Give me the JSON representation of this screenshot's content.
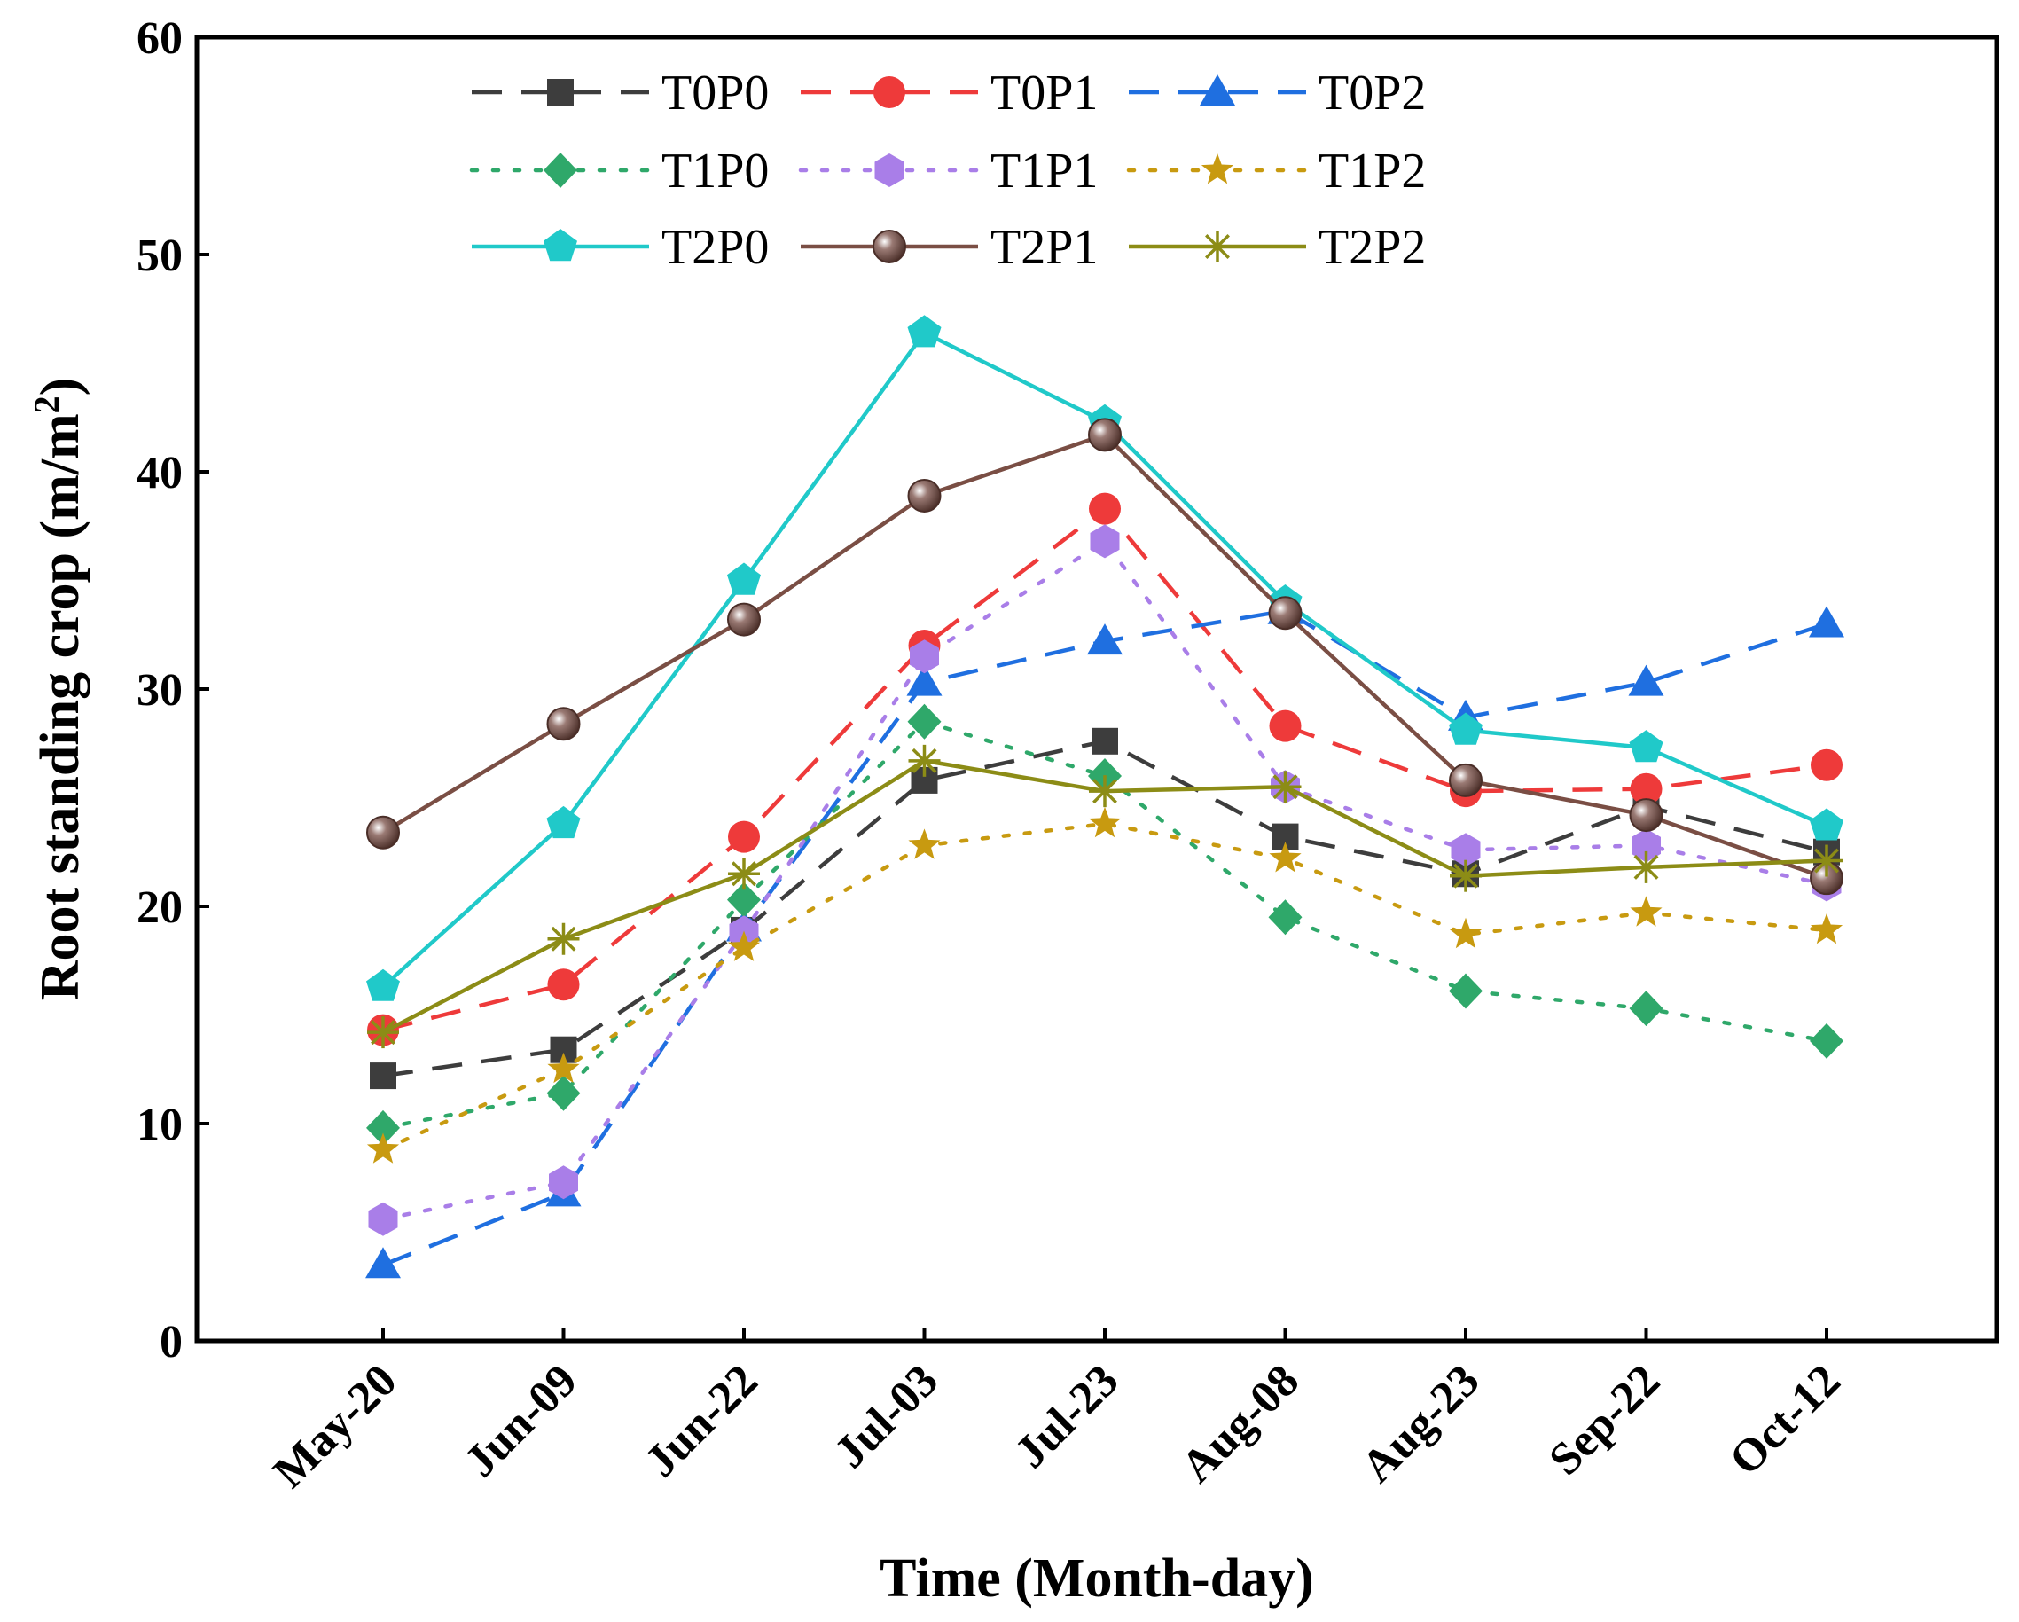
{
  "chart_data": {
    "type": "line",
    "title": "",
    "xlabel": "Time (Month-day)",
    "ylabel_main": "Root standing crop (m/m",
    "ylabel_sup": "2",
    "ylabel_close": ")",
    "ylim": [
      0,
      60
    ],
    "yticks": [
      "0",
      "10",
      "20",
      "30",
      "40",
      "50",
      "60"
    ],
    "categories": [
      "May-20",
      "Jun-09",
      "Jun-22",
      "Jul-03",
      "Jul-23",
      "Aug-08",
      "Aug-23",
      "Sep-22",
      "Oct-12"
    ],
    "legend_position": "top-center",
    "series": [
      {
        "name": "T0P0",
        "color": "#3d3d3d",
        "dash": "dash",
        "marker": "square",
        "values": [
          12.2,
          13.4,
          18.9,
          25.8,
          27.6,
          23.2,
          21.5,
          24.6,
          22.5
        ]
      },
      {
        "name": "T0P1",
        "color": "#ee3a3a",
        "dash": "dash",
        "marker": "circle",
        "values": [
          14.3,
          16.4,
          23.2,
          32.0,
          38.3,
          28.3,
          25.3,
          25.4,
          26.5
        ]
      },
      {
        "name": "T0P2",
        "color": "#1f6fe0",
        "dash": "dash",
        "marker": "triangle",
        "values": [
          3.5,
          6.8,
          19.0,
          30.3,
          32.2,
          33.6,
          28.7,
          30.3,
          33.0
        ]
      },
      {
        "name": "T1P0",
        "color": "#2fa86a",
        "dash": "dot",
        "marker": "diamond",
        "values": [
          9.8,
          11.4,
          20.3,
          28.5,
          26.0,
          19.5,
          16.1,
          15.3,
          13.8
        ]
      },
      {
        "name": "T1P1",
        "color": "#a97ee8",
        "dash": "dot",
        "marker": "hexagon",
        "values": [
          5.6,
          7.3,
          18.8,
          31.5,
          36.8,
          25.5,
          22.6,
          22.8,
          21.0
        ]
      },
      {
        "name": "T1P2",
        "color": "#c89a10",
        "dash": "dot",
        "marker": "star",
        "values": [
          8.8,
          12.5,
          18.1,
          22.8,
          23.8,
          22.2,
          18.7,
          19.7,
          18.9
        ]
      },
      {
        "name": "T2P0",
        "color": "#20c9c9",
        "dash": "solid",
        "marker": "pentagon",
        "values": [
          16.3,
          23.8,
          35.0,
          46.4,
          42.3,
          34.0,
          28.1,
          27.3,
          23.7
        ]
      },
      {
        "name": "T2P1",
        "color": "#7a4e44",
        "dash": "solid",
        "marker": "sphere",
        "values": [
          23.4,
          28.4,
          33.2,
          38.9,
          41.7,
          33.5,
          25.8,
          24.2,
          21.3
        ]
      },
      {
        "name": "T2P2",
        "color": "#8c8c16",
        "dash": "solid",
        "marker": "asterisk",
        "values": [
          14.2,
          18.5,
          21.5,
          26.7,
          25.3,
          25.5,
          21.4,
          21.8,
          22.1
        ]
      }
    ]
  }
}
